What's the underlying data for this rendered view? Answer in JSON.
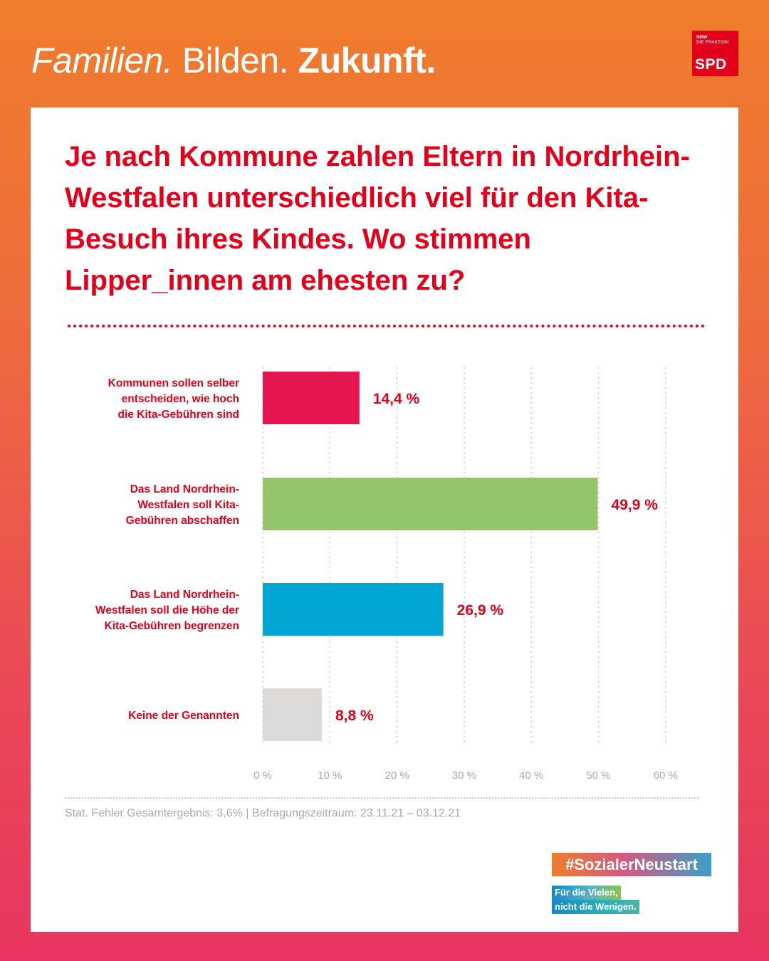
{
  "header": {
    "word1": "Familien.",
    "word2": "Bilden.",
    "word3": "Zukunft."
  },
  "logo": {
    "line1": "NRW",
    "line2": "DIE FRAKTION",
    "brand": "SPD"
  },
  "question": "Je nach Kommune zahlen Eltern in Nordrhein-Westfalen unterschiedlich viel für den Kita-Besuch ihres Kindes. Wo stimmen Lipper_innen am ehesten zu?",
  "chart_data": {
    "type": "bar",
    "orientation": "horizontal",
    "categories": [
      [
        "Kommunen sollen selber",
        "entscheiden, wie hoch",
        "die Kita-Gebühren sind"
      ],
      [
        "Das Land Nordrhein-",
        "Westfalen soll Kita-",
        "Gebühren abschaffen"
      ],
      [
        "Das Land Nordrhein-",
        "Westfalen soll die Höhe der",
        "Kita-Gebühren begrenzen"
      ],
      [
        "Keine der Genannten"
      ]
    ],
    "values": [
      14.4,
      49.9,
      26.9,
      8.8
    ],
    "value_labels": [
      "14,4 %",
      "49,9 %",
      "26,9 %",
      "8,8 %"
    ],
    "colors": [
      "#e5164f",
      "#93c66c",
      "#02a6d3",
      "#dcdbd9"
    ],
    "xlim": [
      0,
      60
    ],
    "xticks": [
      0,
      10,
      20,
      30,
      40,
      50,
      60
    ],
    "xtick_labels": [
      "0 %",
      "10 %",
      "20 %",
      "30 %",
      "40 %",
      "50 %",
      "60 %"
    ],
    "grid": true,
    "label_color": "#e3001b"
  },
  "footnote": "Stat. Fehler Gesamtergebnis: 3,6%   |   Befragungszeitraum: 23.11.21 – 03.12.21",
  "hashtag": "#SozialerNeustart",
  "slogan": {
    "line1": "Für die Vielen,",
    "line2": "nicht die Wenigen."
  }
}
